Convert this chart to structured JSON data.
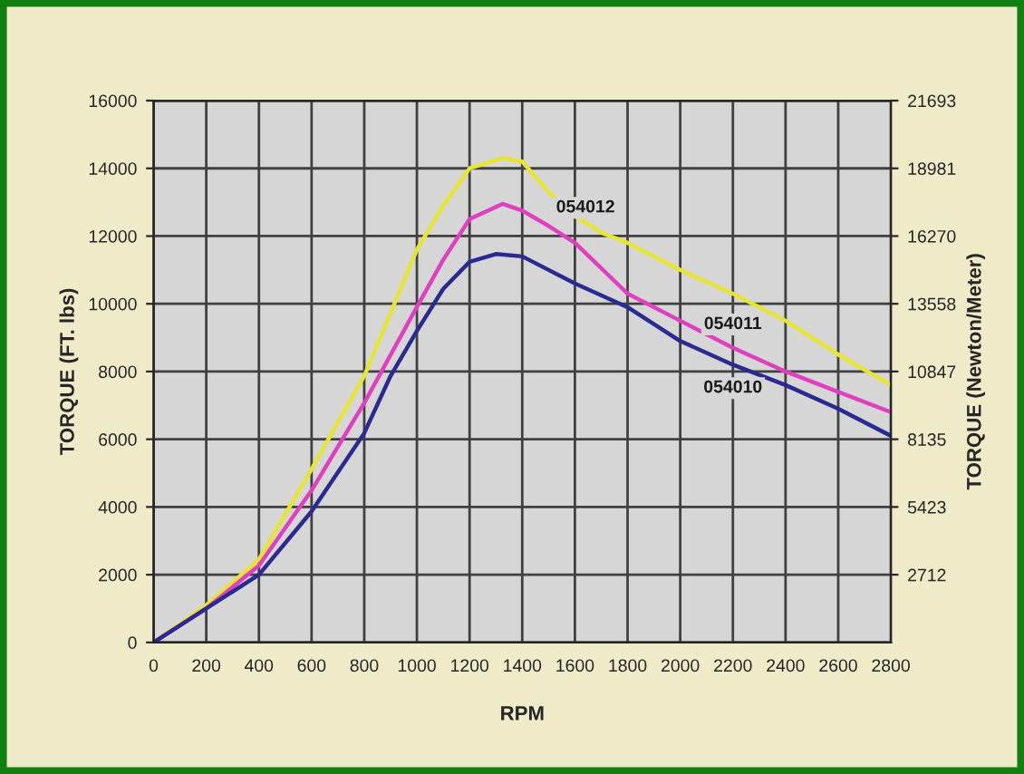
{
  "chart_data": {
    "type": "line",
    "xlabel": "RPM",
    "ylabel": "TORQUE (FT. lbs)",
    "y2label": "TORQUE (Newton/Meter)",
    "xlim": [
      0,
      2800
    ],
    "xticks": [
      0,
      200,
      400,
      600,
      800,
      1000,
      1200,
      1400,
      1600,
      1800,
      2000,
      2200,
      2400,
      2600,
      2800
    ],
    "ylim": [
      0,
      16000
    ],
    "yticks": [
      0,
      2000,
      4000,
      6000,
      8000,
      10000,
      12000,
      14000,
      16000
    ],
    "y2lim": [
      0,
      21693
    ],
    "y2ticks": [
      2712,
      5423,
      8135,
      10847,
      13558,
      16270,
      18981,
      21693
    ],
    "grid": true,
    "legend": false,
    "marker": "none",
    "line_style": "solid",
    "series": [
      {
        "name": "054012",
        "color": "#e6e632",
        "x": [
          0,
          200,
          400,
          600,
          800,
          900,
          1000,
          1100,
          1200,
          1325,
          1400,
          1500,
          1600,
          1700,
          1800,
          2000,
          2200,
          2400,
          2600,
          2800
        ],
        "values": [
          0,
          1100,
          2450,
          5120,
          7870,
          9730,
          11600,
          12900,
          14000,
          14300,
          14200,
          13300,
          12600,
          12100,
          11800,
          11000,
          10300,
          9500,
          8500,
          7600
        ]
      },
      {
        "name": "054011",
        "color": "#e040c0",
        "x": [
          0,
          200,
          400,
          600,
          800,
          900,
          1000,
          1100,
          1200,
          1325,
          1400,
          1500,
          1600,
          1800,
          2000,
          2200,
          2400,
          2600,
          2800
        ],
        "values": [
          0,
          1000,
          2270,
          4490,
          7070,
          8490,
          9910,
          11300,
          12500,
          12950,
          12750,
          12300,
          11800,
          10300,
          9500,
          8700,
          8000,
          7400,
          6800
        ]
      },
      {
        "name": "054010",
        "color": "#2a2a90",
        "x": [
          0,
          200,
          400,
          600,
          800,
          900,
          1000,
          1100,
          1200,
          1300,
          1400,
          1600,
          1800,
          2000,
          2200,
          2400,
          2600,
          2800
        ],
        "values": [
          0,
          1000,
          2000,
          3870,
          6180,
          7870,
          9200,
          10440,
          11240,
          11470,
          11400,
          10600,
          9900,
          8900,
          8200,
          7600,
          6900,
          6100
        ]
      }
    ]
  }
}
